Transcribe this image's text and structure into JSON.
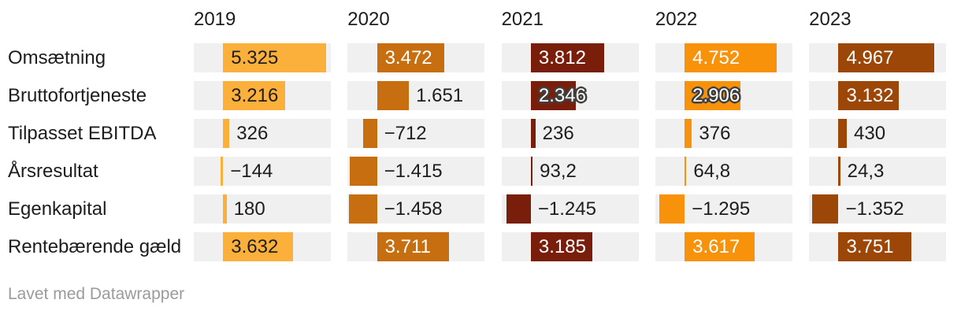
{
  "chart_data": {
    "type": "bar",
    "subtype": "bar-table-heatmap",
    "columns": [
      "2019",
      "2020",
      "2021",
      "2022",
      "2023"
    ],
    "rows": [
      {
        "label": "Omsætning",
        "values": [
          5325,
          3472,
          3812,
          4752,
          4967
        ],
        "value_labels": [
          "5.325",
          "3.472",
          "3.812",
          "4.752",
          "4.967"
        ]
      },
      {
        "label": "Bruttofortjeneste",
        "values": [
          3216,
          1651,
          2346,
          2906,
          3132
        ],
        "value_labels": [
          "3.216",
          "1.651",
          "2.346",
          "2.906",
          "3.132"
        ]
      },
      {
        "label": "Tilpasset EBITDA",
        "values": [
          326,
          -712,
          236,
          376,
          430
        ],
        "value_labels": [
          "326",
          "−712",
          "236",
          "376",
          "430"
        ]
      },
      {
        "label": "Årsresultat",
        "values": [
          -144,
          -1415,
          93.2,
          64.8,
          24.3
        ],
        "value_labels": [
          "−144",
          "−1.415",
          "93,2",
          "64,8",
          "24,3"
        ]
      },
      {
        "label": "Egenkapital",
        "values": [
          180,
          -1458,
          -1245,
          -1295,
          -1352
        ],
        "value_labels": [
          "180",
          "−1.458",
          "−1.245",
          "−1.295",
          "−1.352"
        ]
      },
      {
        "label": "Rentebærende gæld",
        "values": [
          3632,
          3711,
          3185,
          3617,
          3751
        ],
        "value_labels": [
          "3.632",
          "3.711",
          "3.185",
          "3.617",
          "3.751"
        ]
      }
    ],
    "column_bar_colors": [
      "#FBB03C",
      "#C76F10",
      "#7A1E0C",
      "#F8920B",
      "#9C4708"
    ],
    "column_inside_text_colors": [
      "#1d1d1d",
      "#ffffff",
      "#ffffff",
      "#ffffff",
      "#ffffff"
    ],
    "outside_text_color": "#1d1d1d",
    "cell_background": "#f0f0f0",
    "outline_color": "#3f3f3f",
    "axis": {
      "min": -1520,
      "max": 5570
    },
    "grid": "off",
    "legend": "none",
    "title": ""
  },
  "footer": {
    "credit": "Lavet med Datawrapper"
  }
}
